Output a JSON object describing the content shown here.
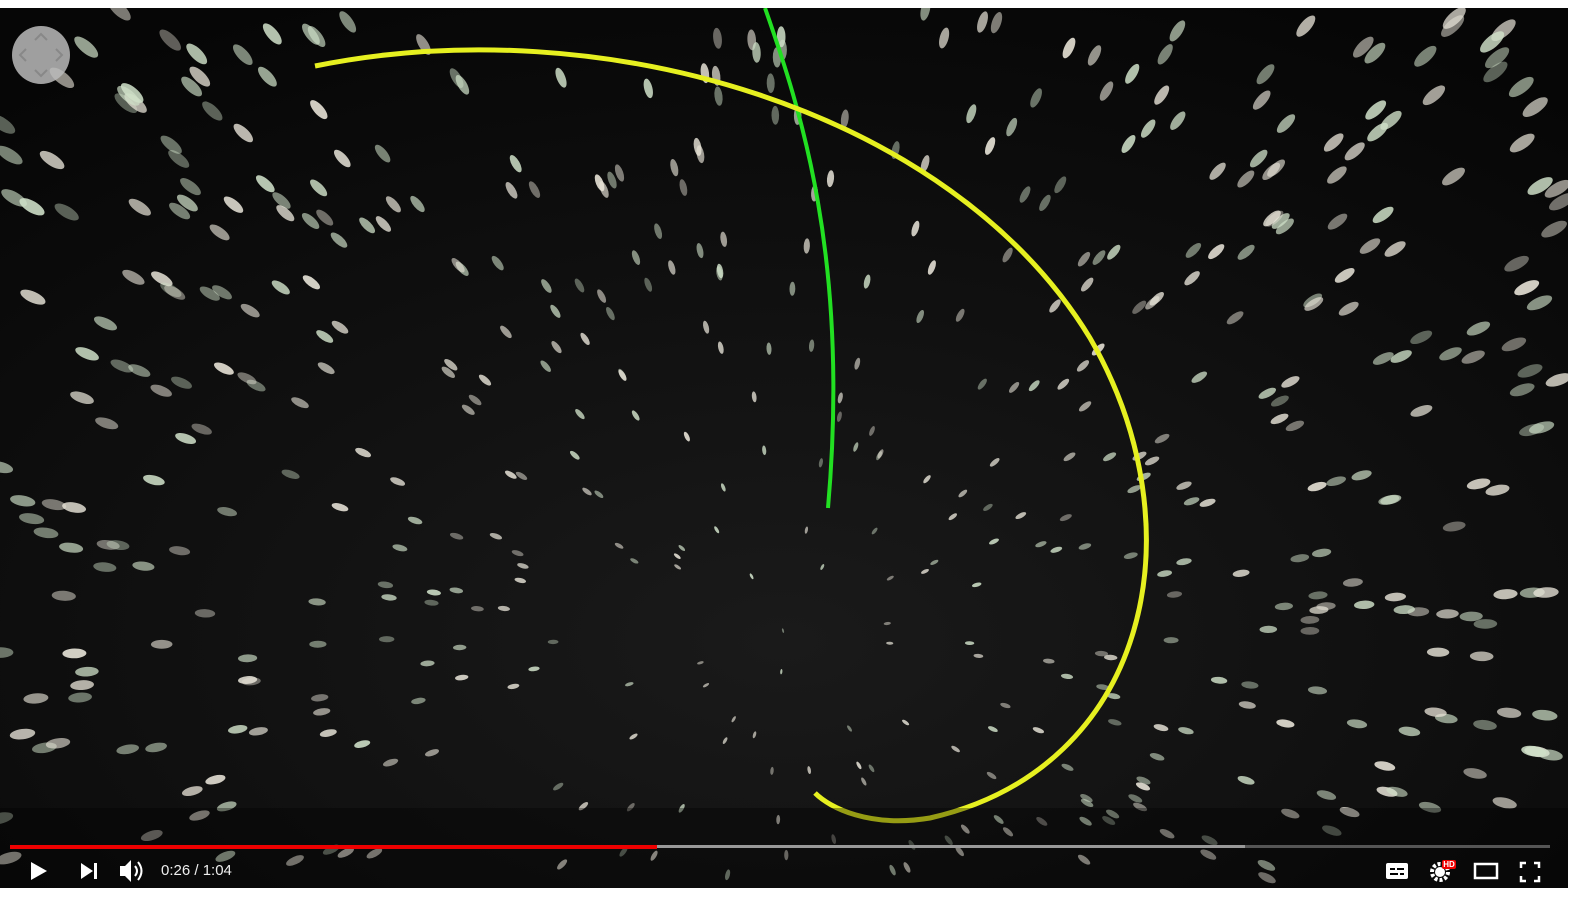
{
  "player": {
    "time_display": "0:26 / 1:04",
    "hd_badge": "HD"
  }
}
